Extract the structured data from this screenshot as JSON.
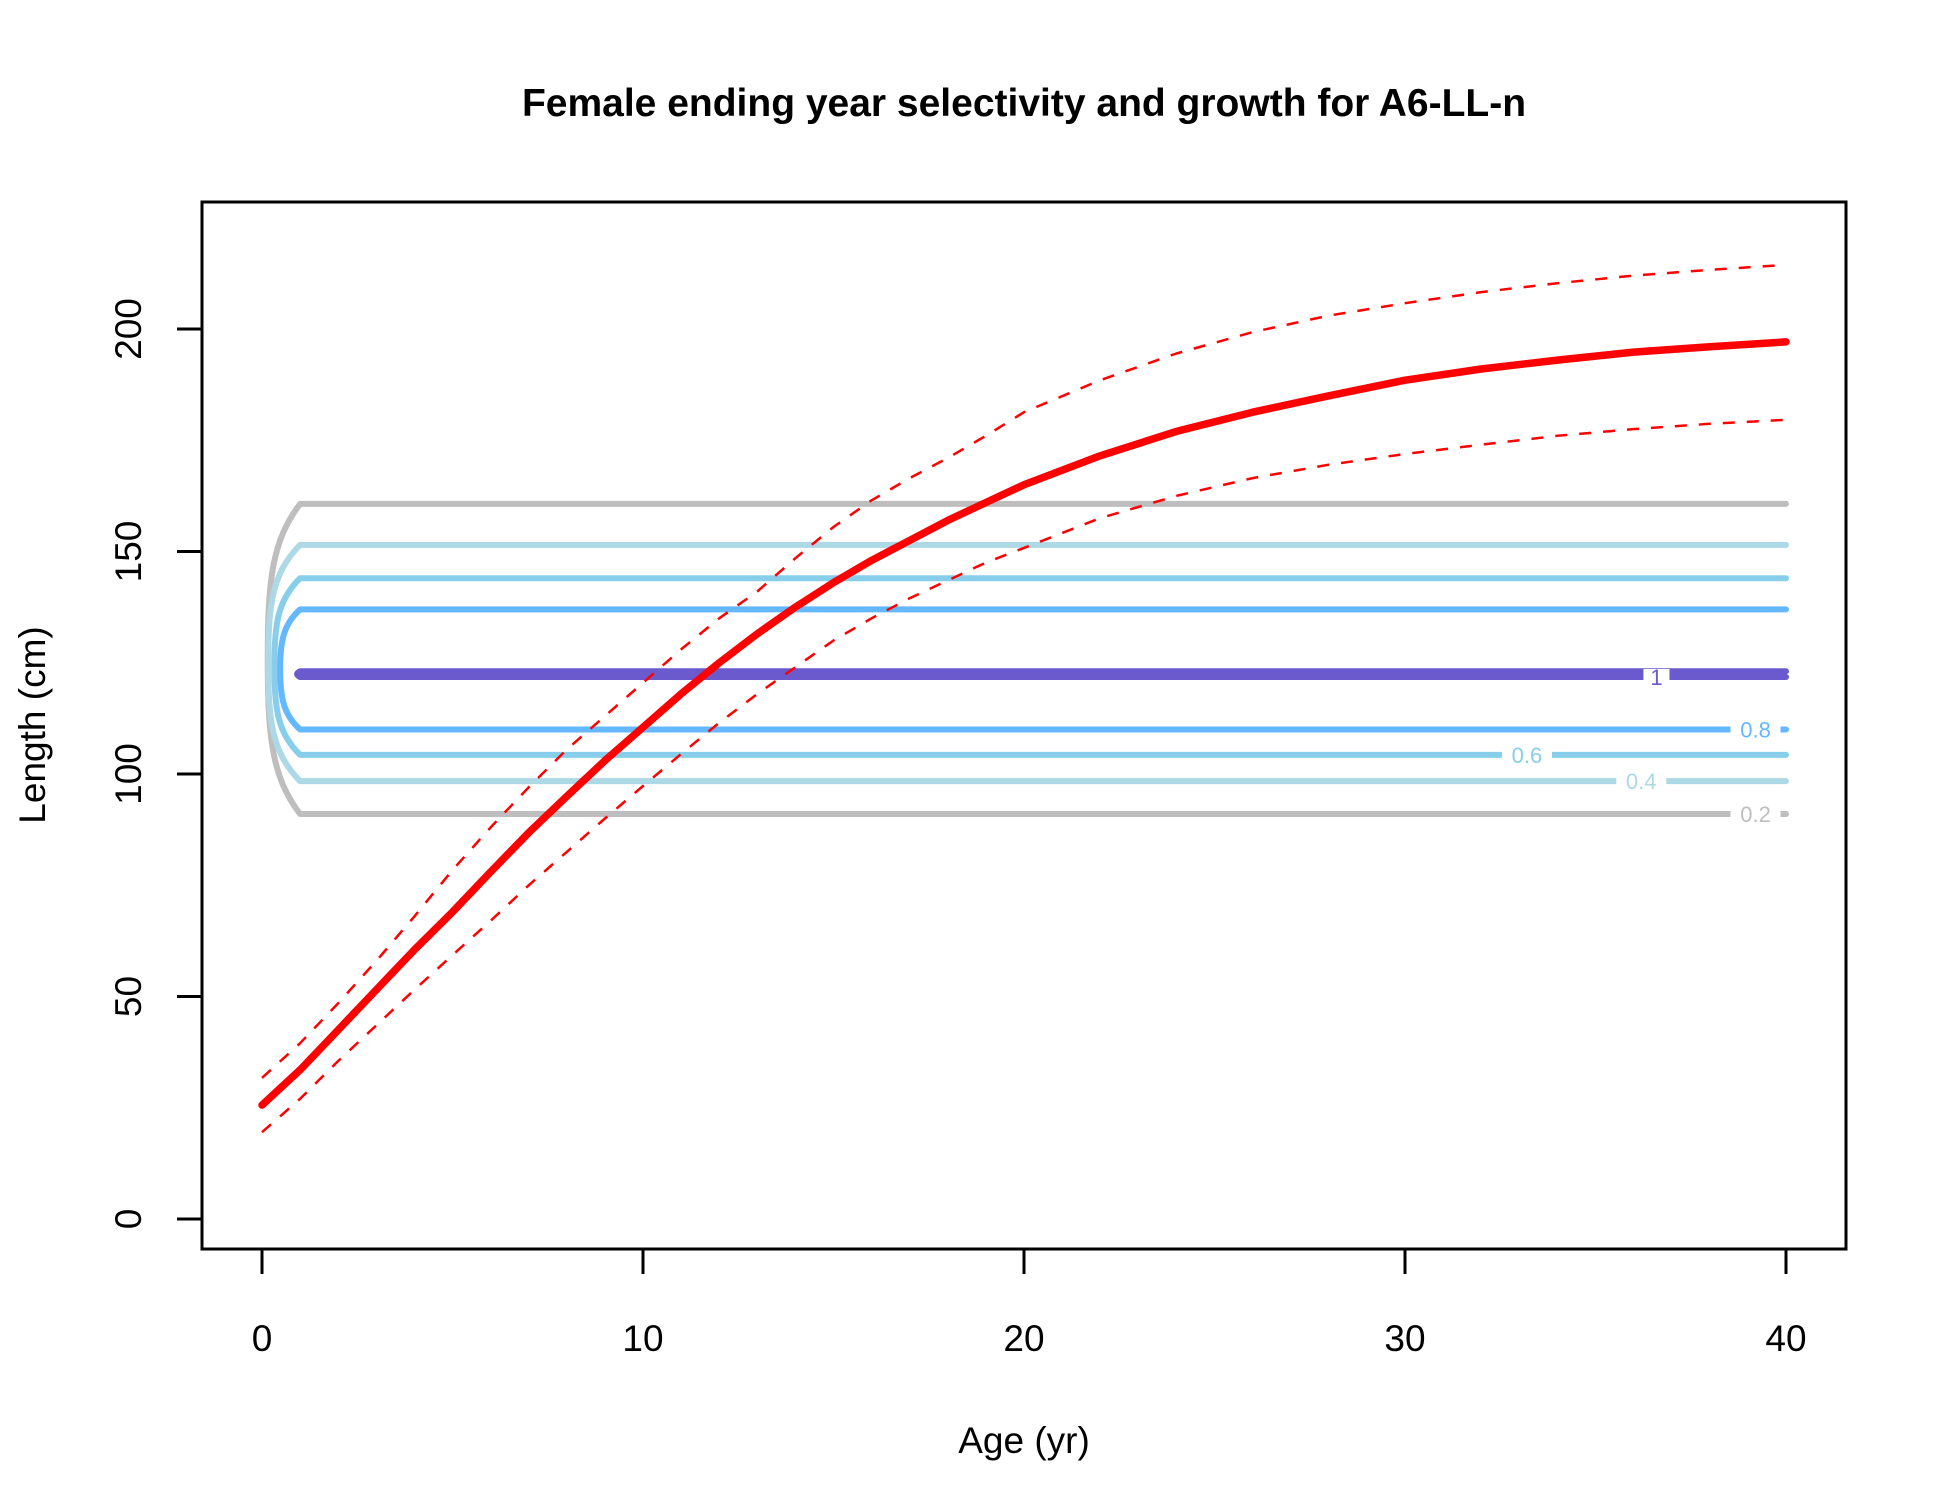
{
  "chart_data": {
    "type": "line",
    "title": "Female ending year selectivity and growth for A6-LL-n",
    "xlabel": "Age (yr)",
    "ylabel": "Length (cm)",
    "xlim": [
      -1.6,
      41.6
    ],
    "ylim": [
      -6.7,
      228
    ],
    "grid": false,
    "legend": "none",
    "x_ticks": [
      0,
      10,
      20,
      30,
      40
    ],
    "y_ticks": [
      0,
      50,
      100,
      150,
      200
    ],
    "growth": {
      "mean": {
        "name": "Mean length at age",
        "color": "#FF0000",
        "style": "solid",
        "x": [
          0,
          1,
          2,
          3,
          4,
          5,
          6,
          7,
          8,
          9,
          10,
          11,
          12,
          13,
          14,
          15,
          16,
          17,
          18,
          19,
          20,
          22,
          24,
          26,
          28,
          30,
          32,
          34,
          36,
          38,
          40
        ],
        "y": [
          25.6,
          33.5,
          42.5,
          51.5,
          60.5,
          69.0,
          78.0,
          86.8,
          95.0,
          103.0,
          110.5,
          118.0,
          125.0,
          131.5,
          137.5,
          143.0,
          148.0,
          152.5,
          157.0,
          161.0,
          165.0,
          171.5,
          177.0,
          181.3,
          185.0,
          188.5,
          191.0,
          193.0,
          194.8,
          196.0,
          197.1
        ]
      },
      "upper": {
        "name": "Upper interval",
        "color": "#FF0000",
        "style": "dashed",
        "x": [
          0,
          1,
          2,
          3,
          4,
          5,
          6,
          7,
          8,
          9,
          10,
          11,
          12,
          13,
          14,
          15,
          16,
          17,
          18,
          19,
          20,
          22,
          24,
          26,
          28,
          30,
          32,
          34,
          36,
          38,
          40
        ],
        "y": [
          31.7,
          39.5,
          48.5,
          58.0,
          68.0,
          78.4,
          88.0,
          97.0,
          105.5,
          113.0,
          120.5,
          128.0,
          135.0,
          141.0,
          148.5,
          155.5,
          161.5,
          166.5,
          171.0,
          176.0,
          181.3,
          188.5,
          194.5,
          199.3,
          203.0,
          205.8,
          208.3,
          210.3,
          212.0,
          213.3,
          214.4
        ]
      },
      "lower": {
        "name": "Lower interval",
        "color": "#FF0000",
        "style": "dashed",
        "x": [
          0,
          1,
          2,
          3,
          4,
          5,
          6,
          7,
          8,
          9,
          10,
          11,
          12,
          13,
          14,
          15,
          16,
          17,
          18,
          19,
          20,
          22,
          24,
          26,
          28,
          30,
          32,
          34,
          36,
          38,
          40
        ],
        "y": [
          19.5,
          27.0,
          35.5,
          43.5,
          51.5,
          59.3,
          67.0,
          75.0,
          82.5,
          90.0,
          97.3,
          104.5,
          111.5,
          118.0,
          124.0,
          130.0,
          135.0,
          139.5,
          143.5,
          147.5,
          150.8,
          157.5,
          162.5,
          166.5,
          169.5,
          171.9,
          174.0,
          176.0,
          177.5,
          178.7,
          179.6
        ]
      }
    },
    "selectivity_contours": [
      {
        "level": 0.2,
        "label": "0.2",
        "color": "#BEBEBE",
        "length_low": 91.0,
        "length_high": 160.7,
        "age_start": 1,
        "age_end": 40,
        "label_age": 39.2
      },
      {
        "level": 0.4,
        "label": "0.4",
        "color": "#ADD8E6",
        "length_low": 98.4,
        "length_high": 151.5,
        "age_start": 1,
        "age_end": 40,
        "label_age": 36.2
      },
      {
        "level": 0.6,
        "label": "0.6",
        "color": "#87CEEB",
        "length_low": 104.3,
        "length_high": 144.0,
        "age_start": 1,
        "age_end": 40,
        "label_age": 33.2
      },
      {
        "level": 0.8,
        "label": "0.8",
        "color": "#63B8FF",
        "length_low": 110.0,
        "length_high": 137.0,
        "age_start": 1,
        "age_end": 40,
        "label_age": 39.2
      },
      {
        "level": 1,
        "label": "1",
        "color": "#6A5ACD",
        "length_low": 121.8,
        "length_high": 123.1,
        "age_start": 1,
        "age_end": 40,
        "label_age": 36.6
      }
    ]
  }
}
